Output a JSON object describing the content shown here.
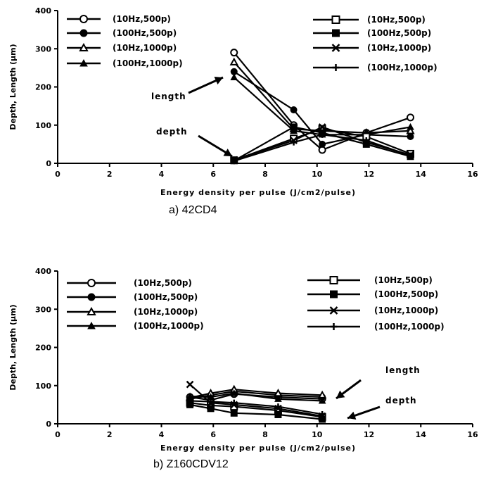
{
  "chart_data": [
    {
      "type": "line",
      "caption": "a) 42CD4",
      "xlabel": "Energy density per pulse (J/cm2/pulse)",
      "ylabel": "Depth, Length (µm)",
      "xlim": [
        0,
        16
      ],
      "ylim": [
        0,
        400
      ],
      "xticks": [
        "0",
        "2",
        "4",
        "6",
        "8",
        "10",
        "12",
        "14",
        "16"
      ],
      "yticks": [
        "0",
        "100",
        "200",
        "300",
        "400"
      ],
      "grid": false,
      "legend_position": "top",
      "annotations": [
        "length",
        "depth"
      ],
      "series": [
        {
          "name": "(10Hz,500p)",
          "group": "length",
          "marker": "open-circle",
          "x": [
            6.8,
            9.1,
            10.2,
            11.9,
            13.6
          ],
          "y": [
            290,
            100,
            35,
            80,
            120
          ]
        },
        {
          "name": "(100Hz,500p)",
          "group": "length",
          "marker": "filled-circle",
          "x": [
            6.8,
            9.1,
            10.2,
            11.9,
            13.6
          ],
          "y": [
            240,
            140,
            50,
            75,
            70
          ]
        },
        {
          "name": "(10Hz,1000p)",
          "group": "length",
          "marker": "open-triangle",
          "x": [
            6.8,
            9.1,
            10.2,
            11.9,
            13.6
          ],
          "y": [
            265,
            90,
            85,
            80,
            85
          ]
        },
        {
          "name": "(100Hz,1000p)",
          "group": "length",
          "marker": "filled-triangle",
          "x": [
            6.8,
            9.1,
            10.2,
            11.9,
            13.6
          ],
          "y": [
            225,
            85,
            75,
            75,
            95
          ]
        },
        {
          "name": "(10Hz,500p)",
          "group": "depth",
          "marker": "open-square",
          "x": [
            6.8,
            9.1,
            10.2,
            11.9,
            13.6
          ],
          "y": [
            8,
            65,
            90,
            70,
            25
          ]
        },
        {
          "name": "(100Hz,500p)",
          "group": "depth",
          "marker": "filled-square",
          "x": [
            6.8,
            9.1,
            10.2,
            11.9,
            13.6
          ],
          "y": [
            7,
            95,
            80,
            50,
            18
          ]
        },
        {
          "name": "(10Hz,1000p)",
          "group": "depth",
          "marker": "cross",
          "x": [
            6.8,
            9.1,
            10.2,
            11.9,
            13.6
          ],
          "y": [
            9,
            60,
            95,
            55,
            22
          ]
        },
        {
          "name": "(100Hz,1000p)",
          "group": "depth",
          "marker": "plus",
          "x": [
            6.8,
            9.1,
            10.2,
            11.9,
            13.6
          ],
          "y": [
            6,
            55,
            75,
            60,
            20
          ]
        }
      ]
    },
    {
      "type": "line",
      "caption": "b) Z160CDV12",
      "xlabel": "Energy density per pulse (J/cm2/pulse)",
      "ylabel": "Depth, Length (µm)",
      "xlim": [
        0,
        16
      ],
      "ylim": [
        0,
        400
      ],
      "xticks": [
        "0",
        "2",
        "4",
        "6",
        "8",
        "10",
        "12",
        "14",
        "16"
      ],
      "yticks": [
        "0",
        "100",
        "200",
        "300",
        "400"
      ],
      "grid": false,
      "legend_position": "top",
      "annotations": [
        "length",
        "depth"
      ],
      "series": [
        {
          "name": "(10Hz,500p)",
          "group": "length",
          "marker": "open-circle",
          "x": [
            5.1,
            5.9,
            6.8,
            8.5,
            10.2
          ],
          "y": [
            70,
            62,
            78,
            70,
            65
          ]
        },
        {
          "name": "(100Hz,500p)",
          "group": "length",
          "marker": "filled-circle",
          "x": [
            5.1,
            5.9,
            6.8,
            8.5,
            10.2
          ],
          "y": [
            65,
            75,
            85,
            75,
            70
          ]
        },
        {
          "name": "(10Hz,1000p)",
          "group": "length",
          "marker": "open-triangle",
          "x": [
            5.1,
            5.9,
            6.8,
            8.5,
            10.2
          ],
          "y": [
            68,
            80,
            90,
            80,
            75
          ]
        },
        {
          "name": "(100Hz,1000p)",
          "group": "length",
          "marker": "filled-triangle",
          "x": [
            5.1,
            5.9,
            6.8,
            8.5,
            10.2
          ],
          "y": [
            72,
            70,
            80,
            65,
            60
          ]
        },
        {
          "name": "(10Hz,500p)",
          "group": "depth",
          "marker": "open-square",
          "x": [
            5.1,
            5.9,
            6.8,
            8.5,
            10.2
          ],
          "y": [
            55,
            48,
            45,
            35,
            18
          ]
        },
        {
          "name": "(100Hz,500p)",
          "group": "depth",
          "marker": "filled-square",
          "x": [
            5.1,
            5.9,
            6.8,
            8.5,
            10.2
          ],
          "y": [
            50,
            40,
            28,
            24,
            12
          ]
        },
        {
          "name": "(10Hz,1000p)",
          "group": "depth",
          "marker": "cross",
          "x": [
            5.1,
            5.9,
            6.8,
            8.5,
            10.2
          ],
          "y": [
            103,
            55,
            50,
            40,
            20
          ]
        },
        {
          "name": "(100Hz,1000p)",
          "group": "depth",
          "marker": "plus",
          "x": [
            5.1,
            5.9,
            6.8,
            8.5,
            10.2
          ],
          "y": [
            60,
            58,
            55,
            45,
            25
          ]
        }
      ]
    }
  ]
}
